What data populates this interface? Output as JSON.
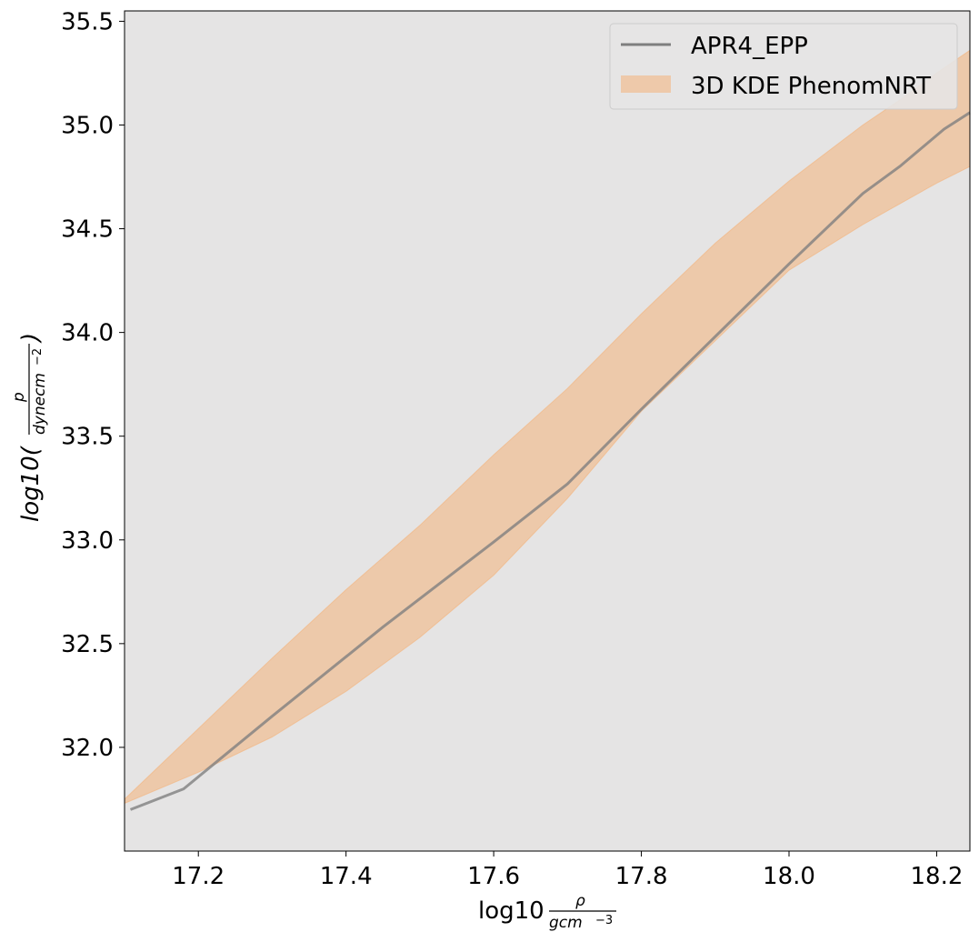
{
  "chart_data": {
    "type": "area",
    "xlim": [
      17.1,
      18.245
    ],
    "ylim": [
      31.5,
      35.55
    ],
    "grid": false,
    "legend_position": "top-right",
    "x_ticks": [
      17.2,
      17.4,
      17.6,
      17.8,
      18.0,
      18.2
    ],
    "x_tick_labels": [
      "17.2",
      "17.4",
      "17.6",
      "17.8",
      "18.0",
      "18.2"
    ],
    "y_ticks": [
      32.0,
      32.5,
      33.0,
      33.5,
      34.0,
      34.5,
      35.0,
      35.5
    ],
    "y_tick_labels": [
      "32.0",
      "32.5",
      "33.0",
      "33.5",
      "34.0",
      "34.5",
      "35.0",
      "35.5"
    ],
    "xlabel": {
      "main": "log10",
      "numerator": "ρ",
      "denominator": "gcm",
      "denominator_exp": "−3"
    },
    "ylabel": {
      "main": "log10(",
      "numerator": "p",
      "denominator": "dynecm",
      "denominator_exp": "−2",
      "close": ")"
    },
    "series": [
      {
        "name": "APR4_EPP",
        "kind": "line",
        "color": "#7f7f7f",
        "x": [
          17.108,
          17.18,
          17.3,
          17.45,
          17.6,
          17.7,
          17.8,
          17.9,
          18.0,
          18.1,
          18.15,
          18.21,
          18.245
        ],
        "y": [
          31.7,
          31.8,
          32.15,
          32.58,
          32.99,
          33.27,
          33.63,
          33.98,
          34.33,
          34.67,
          34.8,
          34.98,
          35.06
        ]
      },
      {
        "name": "3D KDE PhenomNRT",
        "kind": "band",
        "color": "#f4b27a",
        "x": [
          17.1,
          17.2,
          17.3,
          17.4,
          17.5,
          17.6,
          17.7,
          17.8,
          17.9,
          18.0,
          18.1,
          18.15,
          18.2,
          18.245
        ],
        "upper": [
          31.75,
          32.09,
          32.43,
          32.76,
          33.07,
          33.41,
          33.73,
          34.09,
          34.43,
          34.73,
          35.0,
          35.12,
          35.25,
          35.36
        ],
        "lower": [
          31.73,
          31.88,
          32.05,
          32.27,
          32.53,
          32.83,
          33.2,
          33.62,
          33.96,
          34.3,
          34.52,
          34.62,
          34.72,
          34.8
        ]
      }
    ]
  }
}
